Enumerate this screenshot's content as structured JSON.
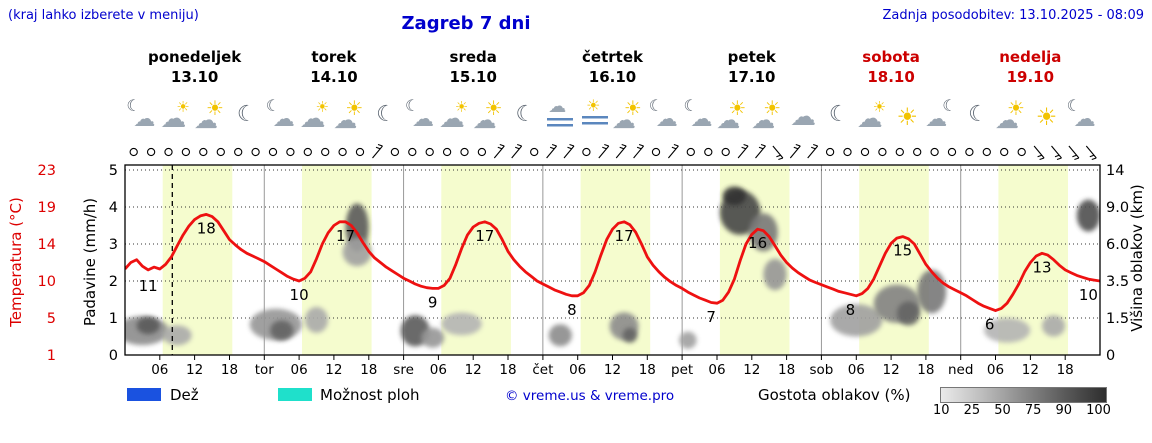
{
  "header": {
    "hint": "(kraj lahko izberete v meniju)",
    "title": "Zagreb 7 dni",
    "updated": "Zadnja posodobitev: 13.10.2025 - 08:09"
  },
  "days": [
    {
      "name": "ponedeljek",
      "date": "13.10",
      "weekend": false
    },
    {
      "name": "torek",
      "date": "14.10",
      "weekend": false
    },
    {
      "name": "sreda",
      "date": "15.10",
      "weekend": false
    },
    {
      "name": "četrtek",
      "date": "16.10",
      "weekend": false
    },
    {
      "name": "petek",
      "date": "17.10",
      "weekend": false
    },
    {
      "name": "sobota",
      "date": "18.10",
      "weekend": true
    },
    {
      "name": "nedelja",
      "date": "19.10",
      "weekend": true
    }
  ],
  "axes": {
    "temp_label": "Temperatura (°C)",
    "precip_label": "Padavine (mm/h)",
    "cloud_label": "Višina oblakov (km)",
    "temp_ticks": [
      "23",
      "19",
      "14",
      "10",
      "5",
      "1"
    ],
    "precip_ticks": [
      "5",
      "4",
      "3",
      "2",
      "1",
      "0"
    ],
    "cloud_ticks": [
      "14",
      "9.0",
      "6.0",
      "3.5",
      "1.5",
      "0"
    ]
  },
  "xaxis": [
    {
      "h": 6,
      "t": "06"
    },
    {
      "h": 12,
      "t": "12"
    },
    {
      "h": 18,
      "t": "18"
    },
    {
      "h": 24,
      "t": "tor"
    },
    {
      "h": 30,
      "t": "06"
    },
    {
      "h": 36,
      "t": "12"
    },
    {
      "h": 42,
      "t": "18"
    },
    {
      "h": 48,
      "t": "sre"
    },
    {
      "h": 54,
      "t": "06"
    },
    {
      "h": 60,
      "t": "12"
    },
    {
      "h": 66,
      "t": "18"
    },
    {
      "h": 72,
      "t": "čet"
    },
    {
      "h": 78,
      "t": "06"
    },
    {
      "h": 84,
      "t": "12"
    },
    {
      "h": 90,
      "t": "18"
    },
    {
      "h": 96,
      "t": "pet"
    },
    {
      "h": 102,
      "t": "06"
    },
    {
      "h": 108,
      "t": "12"
    },
    {
      "h": 114,
      "t": "18"
    },
    {
      "h": 120,
      "t": "sob"
    },
    {
      "h": 126,
      "t": "06"
    },
    {
      "h": 132,
      "t": "12"
    },
    {
      "h": 138,
      "t": "18"
    },
    {
      "h": 144,
      "t": "ned"
    },
    {
      "h": 150,
      "t": "06"
    },
    {
      "h": 156,
      "t": "12"
    },
    {
      "h": 162,
      "t": "18"
    }
  ],
  "icons": [
    {
      "h": 3,
      "type": "moon-cloud"
    },
    {
      "h": 9,
      "type": "cloud-sun"
    },
    {
      "h": 15,
      "type": "sun-cloud"
    },
    {
      "h": 21,
      "type": "moon"
    },
    {
      "h": 27,
      "type": "moon-cloud"
    },
    {
      "h": 33,
      "type": "cloud-sun"
    },
    {
      "h": 39,
      "type": "sun-cloud"
    },
    {
      "h": 45,
      "type": "moon"
    },
    {
      "h": 51,
      "type": "moon-cloud"
    },
    {
      "h": 57,
      "type": "cloud-sun"
    },
    {
      "h": 63,
      "type": "sun-cloud"
    },
    {
      "h": 69,
      "type": "moon"
    },
    {
      "h": 75,
      "type": "fog"
    },
    {
      "h": 81,
      "type": "fog-sun"
    },
    {
      "h": 87,
      "type": "sun-cloud"
    },
    {
      "h": 93,
      "type": "moon-cloud"
    },
    {
      "h": 99,
      "type": "moon-cloud"
    },
    {
      "h": 105,
      "type": "sun-cloud"
    },
    {
      "h": 111,
      "type": "sun-cloud"
    },
    {
      "h": 117,
      "type": "cloud"
    },
    {
      "h": 123,
      "type": "moon"
    },
    {
      "h": 129,
      "type": "cloud-sun"
    },
    {
      "h": 135,
      "type": "sun"
    },
    {
      "h": 141,
      "type": "cloud-moon"
    },
    {
      "h": 147,
      "type": "moon"
    },
    {
      "h": 153,
      "type": "sun-cloud"
    },
    {
      "h": 159,
      "type": "sun"
    },
    {
      "h": 165,
      "type": "moon-cloud"
    }
  ],
  "wind_symbols": [
    "calm",
    "calm",
    "calm",
    "calm",
    "calm",
    "calm",
    "calm",
    "calm",
    "calm",
    "calm",
    "calm",
    "calm",
    "calm",
    "calm",
    "ne",
    "calm",
    "calm",
    "calm",
    "calm",
    "calm",
    "calm",
    "ne",
    "ne",
    "calm",
    "ne",
    "ne",
    "calm",
    "ne",
    "ne",
    "ne",
    "calm",
    "ne",
    "calm",
    "calm",
    "calm",
    "ne",
    "ne",
    "se",
    "ne",
    "ne",
    "calm",
    "calm",
    "calm",
    "calm",
    "calm",
    "calm",
    "calm",
    "calm",
    "calm",
    "calm",
    "calm",
    "calm",
    "se",
    "se",
    "se",
    "se"
  ],
  "legend": {
    "rain": "Dež",
    "rain_color": "#1a52e0",
    "showers": "Možnost ploh",
    "showers_color": "#1fe0cb",
    "copyright": "© vreme.us & vreme.pro",
    "cloud_density": "Gostota oblakov (%)",
    "density_ticks": [
      "10",
      "25",
      "50",
      "75",
      "90",
      "100"
    ]
  },
  "chart_data": {
    "type": "line",
    "title": "Zagreb 7 dni",
    "x_range_hours": [
      0,
      168
    ],
    "temp_step_hours": 1,
    "temp_values": [
      11.3,
      12.0,
      12.3,
      11.6,
      11.2,
      11.5,
      11.3,
      11.8,
      12.6,
      13.8,
      15.2,
      16.4,
      17.3,
      17.8,
      18.0,
      17.7,
      17.0,
      15.8,
      14.6,
      13.9,
      13.4,
      13.0,
      12.7,
      12.4,
      12.1,
      11.7,
      11.3,
      10.9,
      10.5,
      10.2,
      10.0,
      10.3,
      11.0,
      12.4,
      14.0,
      15.5,
      16.5,
      17.0,
      17.0,
      16.5,
      15.5,
      14.2,
      13.2,
      12.5,
      12.0,
      11.5,
      11.1,
      10.7,
      10.3,
      10.0,
      9.6,
      9.3,
      9.1,
      9.0,
      9.0,
      9.4,
      10.3,
      11.8,
      13.5,
      15.2,
      16.3,
      16.8,
      17.0,
      16.7,
      16.0,
      14.6,
      13.2,
      12.3,
      11.6,
      11.0,
      10.5,
      10.0,
      9.6,
      9.2,
      8.8,
      8.5,
      8.2,
      8.0,
      8.0,
      8.4,
      9.4,
      11.0,
      12.8,
      14.6,
      16.0,
      16.8,
      17.0,
      16.6,
      15.6,
      14.0,
      12.6,
      11.7,
      11.0,
      10.4,
      9.9,
      9.4,
      9.0,
      8.5,
      8.1,
      7.7,
      7.4,
      7.1,
      7.0,
      7.4,
      8.5,
      10.2,
      12.2,
      14.0,
      15.3,
      16.0,
      15.8,
      15.0,
      13.8,
      12.8,
      12.0,
      11.4,
      10.9,
      10.5,
      10.1,
      9.8,
      9.5,
      9.2,
      8.9,
      8.6,
      8.4,
      8.2,
      8.0,
      8.3,
      9.0,
      10.2,
      11.6,
      13.0,
      14.1,
      14.8,
      15.0,
      14.7,
      14.0,
      12.9,
      11.8,
      11.0,
      10.3,
      9.7,
      9.2,
      8.8,
      8.4,
      8.0,
      7.5,
      7.0,
      6.6,
      6.3,
      6.0,
      6.3,
      7.0,
      8.2,
      9.6,
      11.0,
      12.0,
      12.7,
      13.0,
      12.8,
      12.3,
      11.7,
      11.2,
      10.9,
      10.6,
      10.4,
      10.2,
      10.1,
      10.0
    ],
    "temp_anchors": [
      1,
      5,
      10,
      14,
      19,
      23
    ],
    "km_anchors": [
      0,
      1.5,
      3.5,
      6,
      9,
      14
    ],
    "precip_range": [
      0,
      5
    ],
    "curve_labels": [
      {
        "h": 4,
        "v": 11
      },
      {
        "h": 14,
        "v": 18
      },
      {
        "h": 30,
        "v": 10
      },
      {
        "h": 38,
        "v": 17
      },
      {
        "h": 53,
        "v": 9
      },
      {
        "h": 62,
        "v": 17
      },
      {
        "h": 77,
        "v": 8
      },
      {
        "h": 86,
        "v": 17
      },
      {
        "h": 101,
        "v": 7
      },
      {
        "h": 109,
        "v": 16
      },
      {
        "h": 125,
        "v": 8
      },
      {
        "h": 134,
        "v": 15
      },
      {
        "h": 149,
        "v": 6
      },
      {
        "h": 158,
        "v": 13
      },
      {
        "h": 166,
        "v": 10
      }
    ],
    "cloud_blobs": [
      {
        "h": 3,
        "km": 1.0,
        "wh": 9,
        "tk": 1.2,
        "d": 0.5
      },
      {
        "h": 4,
        "km": 1.2,
        "wh": 4,
        "tk": 0.7,
        "d": 0.75
      },
      {
        "h": 9,
        "km": 0.8,
        "wh": 5,
        "tk": 0.8,
        "d": 0.35
      },
      {
        "h": 26,
        "km": 1.3,
        "wh": 9,
        "tk": 1.4,
        "d": 0.45
      },
      {
        "h": 27,
        "km": 1.0,
        "wh": 4,
        "tk": 0.8,
        "d": 0.7
      },
      {
        "h": 33,
        "km": 1.5,
        "wh": 4,
        "tk": 1.2,
        "d": 0.35
      },
      {
        "h": 40,
        "km": 7.5,
        "wh": 4,
        "tk": 4.0,
        "d": 0.75
      },
      {
        "h": 40,
        "km": 5.5,
        "wh": 5,
        "tk": 2.0,
        "d": 0.4
      },
      {
        "h": 50,
        "km": 1.0,
        "wh": 5,
        "tk": 1.3,
        "d": 0.75
      },
      {
        "h": 53,
        "km": 0.7,
        "wh": 4,
        "tk": 0.8,
        "d": 0.45
      },
      {
        "h": 58,
        "km": 1.3,
        "wh": 7,
        "tk": 1.0,
        "d": 0.3
      },
      {
        "h": 75,
        "km": 0.8,
        "wh": 4,
        "tk": 0.9,
        "d": 0.5
      },
      {
        "h": 86,
        "km": 1.2,
        "wh": 5,
        "tk": 1.2,
        "d": 0.5
      },
      {
        "h": 87,
        "km": 0.8,
        "wh": 2.5,
        "tk": 0.6,
        "d": 0.7
      },
      {
        "h": 97,
        "km": 0.6,
        "wh": 3,
        "tk": 0.7,
        "d": 0.4
      },
      {
        "h": 106,
        "km": 9.0,
        "wh": 7,
        "tk": 4.5,
        "d": 0.85
      },
      {
        "h": 105,
        "km": 10.5,
        "wh": 4,
        "tk": 2.5,
        "d": 0.95
      },
      {
        "h": 110,
        "km": 7.0,
        "wh": 5,
        "tk": 3.0,
        "d": 0.6
      },
      {
        "h": 112,
        "km": 4.0,
        "wh": 4,
        "tk": 2.0,
        "d": 0.45
      },
      {
        "h": 126,
        "km": 1.5,
        "wh": 9,
        "tk": 1.5,
        "d": 0.4
      },
      {
        "h": 133,
        "km": 2.3,
        "wh": 8,
        "tk": 2.0,
        "d": 0.55
      },
      {
        "h": 135,
        "km": 1.8,
        "wh": 4,
        "tk": 1.2,
        "d": 0.7
      },
      {
        "h": 139,
        "km": 3.0,
        "wh": 5,
        "tk": 2.5,
        "d": 0.6
      },
      {
        "h": 152,
        "km": 1.0,
        "wh": 8,
        "tk": 1.0,
        "d": 0.3
      },
      {
        "h": 160,
        "km": 1.2,
        "wh": 4,
        "tk": 0.9,
        "d": 0.35
      },
      {
        "h": 166,
        "km": 8.5,
        "wh": 4,
        "tk": 3.0,
        "d": 0.8
      }
    ],
    "daylight_hours": [
      6.5,
      18.5
    ],
    "now_hour": 8.15,
    "colors": {
      "temp_line": "#ee1111",
      "band": "#f5fcce",
      "grid": "#333333",
      "day_boundary": "#999999",
      "text_blue": "#0000cd",
      "weekend_red": "#cc0000"
    }
  }
}
